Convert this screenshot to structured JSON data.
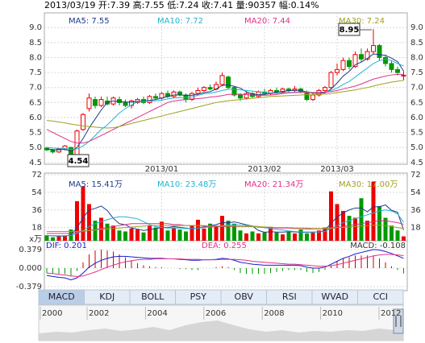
{
  "header": "2013/03/19 开:7.39 高:7.55 低:7.24 收:7.41 量:90357 幅:0.14%",
  "chart_data": [
    {
      "type": "candlestick",
      "categories": [
        null,
        null,
        null,
        null,
        null,
        null,
        null,
        null,
        null,
        null,
        null,
        null,
        null,
        null,
        null,
        null,
        null,
        null,
        null,
        "2013/01",
        null,
        null,
        null,
        null,
        null,
        null,
        null,
        null,
        null,
        null,
        null,
        null,
        null,
        null,
        null,
        null,
        "2013/02",
        null,
        null,
        null,
        null,
        null,
        null,
        null,
        null,
        null,
        null,
        null,
        "2013/03",
        null,
        null,
        null,
        null,
        null,
        null,
        null,
        null,
        null,
        null,
        null
      ],
      "open": [
        4.98,
        4.92,
        4.85,
        4.95,
        5.0,
        4.62,
        5.6,
        6.3,
        6.6,
        6.4,
        6.55,
        6.45,
        6.6,
        6.5,
        6.4,
        6.5,
        6.6,
        6.5,
        6.7,
        6.65,
        6.8,
        6.7,
        6.85,
        6.75,
        6.6,
        6.8,
        6.9,
        7.0,
        6.95,
        7.1,
        7.35,
        7.0,
        6.75,
        6.65,
        6.8,
        6.7,
        6.85,
        6.8,
        6.9,
        6.85,
        6.95,
        6.9,
        6.95,
        6.85,
        6.6,
        6.75,
        6.9,
        7.0,
        7.5,
        7.6,
        7.9,
        7.7,
        8.1,
        7.95,
        8.2,
        8.4,
        8.0,
        7.8,
        7.6,
        7.39
      ],
      "high": [
        5.02,
        4.95,
        4.98,
        5.08,
        5.02,
        5.6,
        6.15,
        6.8,
        6.7,
        6.7,
        6.7,
        6.7,
        6.7,
        6.6,
        6.6,
        6.65,
        6.7,
        6.75,
        6.8,
        6.85,
        6.9,
        6.9,
        6.9,
        6.8,
        6.85,
        7.0,
        7.05,
        7.1,
        7.2,
        7.5,
        7.4,
        7.05,
        6.8,
        6.85,
        6.85,
        6.9,
        6.95,
        6.95,
        7.0,
        7.0,
        7.0,
        7.05,
        7.0,
        6.9,
        6.8,
        6.95,
        7.05,
        7.55,
        7.8,
        8.0,
        8.0,
        8.2,
        8.3,
        8.3,
        8.95,
        8.45,
        8.1,
        7.9,
        7.7,
        7.55
      ],
      "low": [
        4.88,
        4.8,
        4.82,
        4.9,
        4.54,
        4.6,
        5.55,
        6.2,
        6.3,
        6.35,
        6.4,
        6.4,
        6.4,
        6.35,
        6.3,
        6.45,
        6.45,
        6.45,
        6.6,
        6.6,
        6.65,
        6.65,
        6.7,
        6.5,
        6.55,
        6.75,
        6.85,
        6.9,
        6.9,
        7.05,
        6.95,
        6.7,
        6.55,
        6.6,
        6.65,
        6.65,
        6.75,
        6.75,
        6.8,
        6.8,
        6.85,
        6.85,
        6.8,
        6.55,
        6.55,
        6.7,
        6.85,
        6.95,
        7.4,
        7.55,
        7.6,
        7.65,
        7.85,
        7.9,
        8.1,
        7.9,
        7.7,
        7.5,
        7.4,
        7.24
      ],
      "close": [
        4.92,
        4.85,
        4.95,
        5.05,
        4.62,
        5.55,
        6.1,
        6.65,
        6.4,
        6.6,
        6.45,
        6.65,
        6.5,
        6.4,
        6.55,
        6.6,
        6.5,
        6.7,
        6.65,
        6.8,
        6.7,
        6.85,
        6.75,
        6.6,
        6.8,
        6.9,
        7.0,
        6.95,
        7.1,
        7.4,
        7.0,
        6.75,
        6.65,
        6.8,
        6.7,
        6.85,
        6.8,
        6.9,
        6.85,
        6.95,
        6.9,
        6.95,
        6.85,
        6.6,
        6.75,
        6.9,
        7.0,
        7.5,
        7.6,
        7.9,
        7.7,
        8.1,
        7.95,
        8.2,
        8.4,
        8.0,
        7.8,
        7.6,
        7.5,
        7.41
      ],
      "up_color": "#ee0000",
      "down_color": "#009900",
      "ylim": [
        4.44,
        9.49
      ],
      "yticks": [
        {
          "value": 9,
          "label": "9.0"
        },
        8.5,
        {
          "value": 8,
          "label": "8.0"
        },
        7.5,
        {
          "value": 7,
          "label": "7.0"
        },
        6.5,
        {
          "value": 6,
          "label": "6.0"
        },
        5.5,
        {
          "value": 5,
          "label": "5.0"
        },
        4.5
      ],
      "annotations": [
        "8.95",
        "4.54"
      ],
      "series": [
        {
          "name": "MA5",
          "legend": "MA5: 7.55",
          "color": "#1c3c8c",
          "values": [
            4.95,
            4.93,
            4.92,
            4.94,
            4.87,
            5.0,
            5.3,
            5.65,
            5.95,
            6.25,
            6.5,
            6.55,
            6.53,
            6.52,
            6.51,
            6.54,
            6.55,
            6.57,
            6.6,
            6.65,
            6.7,
            6.75,
            6.75,
            6.74,
            6.74,
            6.78,
            6.83,
            6.86,
            6.95,
            7.07,
            7.09,
            7.04,
            6.98,
            6.86,
            6.78,
            6.76,
            6.77,
            6.81,
            6.84,
            6.87,
            6.89,
            6.91,
            6.9,
            6.85,
            6.81,
            6.81,
            6.82,
            6.95,
            7.15,
            7.38,
            7.54,
            7.76,
            7.85,
            7.97,
            8.12,
            8.1,
            8.07,
            7.98,
            7.86,
            7.55
          ]
        },
        {
          "name": "MA10",
          "legend": "MA10: 7.72",
          "color": "#22b4d0",
          "values": [
            5.0,
            4.98,
            4.97,
            4.96,
            4.94,
            4.95,
            5.05,
            5.2,
            5.4,
            5.6,
            5.75,
            5.95,
            6.15,
            6.3,
            6.42,
            6.52,
            6.54,
            6.55,
            6.56,
            6.58,
            6.62,
            6.65,
            6.66,
            6.67,
            6.69,
            6.74,
            6.79,
            6.81,
            6.85,
            6.9,
            6.94,
            6.94,
            6.92,
            6.9,
            6.88,
            6.86,
            6.84,
            6.82,
            6.8,
            6.82,
            6.83,
            6.84,
            6.85,
            6.85,
            6.83,
            6.83,
            6.85,
            6.9,
            6.98,
            7.1,
            7.2,
            7.35,
            7.5,
            7.65,
            7.8,
            7.9,
            7.95,
            7.9,
            7.8,
            7.72
          ]
        },
        {
          "name": "MA20",
          "legend": "MA20: 7.44",
          "color": "#e0308a",
          "values": [
            5.6,
            5.5,
            5.4,
            5.3,
            5.2,
            5.15,
            5.15,
            5.2,
            5.3,
            5.4,
            5.5,
            5.6,
            5.7,
            5.8,
            5.9,
            6.0,
            6.1,
            6.2,
            6.3,
            6.4,
            6.5,
            6.55,
            6.58,
            6.6,
            6.62,
            6.63,
            6.65,
            6.68,
            6.7,
            6.73,
            6.77,
            6.78,
            6.78,
            6.76,
            6.75,
            6.74,
            6.74,
            6.75,
            6.77,
            6.8,
            6.82,
            6.83,
            6.84,
            6.84,
            6.83,
            6.83,
            6.84,
            6.86,
            6.9,
            6.95,
            7.0,
            7.05,
            7.12,
            7.2,
            7.28,
            7.33,
            7.38,
            7.42,
            7.44,
            7.44
          ]
        },
        {
          "name": "MA30",
          "legend": "MA30: 7.24",
          "color": "#a0a020",
          "values": [
            5.9,
            5.88,
            5.85,
            5.82,
            5.78,
            5.75,
            5.72,
            5.7,
            5.68,
            5.66,
            5.65,
            5.66,
            5.7,
            5.75,
            5.8,
            5.85,
            5.9,
            5.95,
            6.0,
            6.05,
            6.1,
            6.15,
            6.2,
            6.25,
            6.3,
            6.35,
            6.4,
            6.45,
            6.5,
            6.53,
            6.56,
            6.58,
            6.6,
            6.62,
            6.64,
            6.66,
            6.68,
            6.7,
            6.71,
            6.72,
            6.73,
            6.74,
            6.75,
            6.76,
            6.76,
            6.77,
            6.78,
            6.8,
            6.83,
            6.86,
            6.89,
            6.92,
            6.96,
            7.0,
            7.05,
            7.1,
            7.14,
            7.18,
            7.21,
            7.24
          ]
        }
      ]
    },
    {
      "type": "bar",
      "unit": "x万",
      "values": [
        10,
        8,
        9,
        10,
        16,
        45,
        60,
        42,
        25,
        28,
        22,
        20,
        15,
        14,
        17,
        16,
        13,
        20,
        18,
        24,
        15,
        18,
        16,
        14,
        20,
        26,
        17,
        22,
        20,
        30,
        25,
        22,
        15,
        12,
        14,
        12,
        13,
        18,
        13,
        11,
        14,
        12,
        16,
        12,
        13,
        15,
        18,
        55,
        42,
        35,
        30,
        28,
        48,
        25,
        65,
        40,
        28,
        20,
        15,
        9
      ],
      "ylim": [
        4.5,
        73.7
      ],
      "yticks": [
        72,
        54,
        36,
        18
      ],
      "series": [
        {
          "name": "MA5",
          "legend": "MA5: 15.41万",
          "color": "#1c3c8c",
          "values": [
            10,
            9.5,
            9.3,
            9.2,
            10.6,
            17.6,
            28,
            36,
            37.6,
            40,
            35.4,
            27.4,
            22,
            20.8,
            17.6,
            16.4,
            15,
            16,
            16.8,
            18.2,
            18,
            19,
            18.2,
            17.4,
            16.6,
            17.8,
            18.6,
            19.8,
            21,
            23,
            22.8,
            23.8,
            22.4,
            20.8,
            19.6,
            15,
            13.2,
            13.8,
            13.4,
            13.4,
            13.8,
            13.6,
            13.2,
            13,
            13.4,
            13.6,
            14.8,
            22.6,
            28.6,
            33,
            36,
            38,
            38,
            34,
            39.2,
            39.2,
            41.2,
            35.6,
            33.6,
            15.41
          ]
        },
        {
          "name": "MA10",
          "legend": "MA10: 23.48万",
          "color": "#22b4d0",
          "values": [
            10,
            9.8,
            9.6,
            9.5,
            10,
            12,
            15,
            19,
            22,
            24,
            26,
            28,
            29,
            29,
            28,
            27,
            24,
            21,
            19,
            18,
            17.5,
            17.5,
            17.5,
            17,
            17,
            17.5,
            18,
            18.5,
            19,
            20,
            20.5,
            21,
            20.5,
            20,
            19.5,
            19,
            18,
            17,
            16,
            15.5,
            14.5,
            14,
            13.5,
            13.5,
            13.5,
            13.5,
            14,
            17,
            20,
            23,
            25,
            27,
            29,
            31,
            33,
            35,
            36,
            35,
            32,
            23.48
          ]
        },
        {
          "name": "MA20",
          "legend": "MA20: 21.34万",
          "color": "#e0308a",
          "values": [
            12,
            12,
            12,
            12,
            12,
            13,
            14,
            15,
            16,
            17,
            18,
            19,
            20,
            21,
            22,
            22,
            22,
            22,
            22,
            22,
            22,
            21,
            21,
            20,
            20,
            20,
            19.5,
            19,
            19,
            19,
            19,
            19,
            19,
            19,
            19,
            18.5,
            18,
            18,
            17.5,
            17.5,
            17.5,
            17,
            17,
            16.5,
            16.5,
            16.5,
            16.5,
            17,
            18,
            19,
            20,
            21,
            22,
            23,
            24,
            25,
            25,
            24,
            23,
            21.34
          ]
        },
        {
          "name": "MA30",
          "legend": "MA30: 17.00万",
          "color": "#a0a020",
          "values": [
            14,
            14,
            14,
            14,
            14,
            14,
            14.5,
            15,
            15.5,
            16,
            16.5,
            17,
            17.5,
            18,
            18.5,
            19,
            19.5,
            20,
            20,
            20,
            20,
            20,
            20,
            20,
            20,
            20,
            20,
            19.5,
            19.5,
            19.5,
            19.5,
            19.5,
            19,
            19,
            19,
            19,
            18.5,
            18.5,
            18,
            18,
            18,
            17.5,
            17.5,
            17.5,
            17,
            17,
            17,
            17.5,
            18,
            18,
            18.5,
            19,
            19.5,
            20,
            20.5,
            20.5,
            20,
            19,
            18,
            17.0
          ]
        }
      ]
    },
    {
      "type": "macd",
      "ylim": [
        -0.461,
        0.56
      ],
      "yticks": [
        0.379,
        {
          "value": 0,
          "label": "0.000"
        },
        -0.379
      ],
      "series": [
        {
          "name": "DIF",
          "legend": "DIF: 0.201",
          "color": "#1a1acc",
          "values": [
            -0.15,
            -0.17,
            -0.19,
            -0.2,
            -0.24,
            -0.2,
            -0.1,
            0.02,
            0.1,
            0.16,
            0.2,
            0.23,
            0.24,
            0.24,
            0.23,
            0.22,
            0.21,
            0.2,
            0.2,
            0.2,
            0.19,
            0.19,
            0.18,
            0.17,
            0.16,
            0.16,
            0.17,
            0.17,
            0.18,
            0.2,
            0.19,
            0.16,
            0.12,
            0.1,
            0.08,
            0.07,
            0.06,
            0.06,
            0.06,
            0.06,
            0.06,
            0.06,
            0.05,
            0.02,
            0.0,
            0.0,
            0.02,
            0.08,
            0.14,
            0.2,
            0.24,
            0.29,
            0.32,
            0.35,
            0.38,
            0.37,
            0.34,
            0.3,
            0.25,
            0.201
          ]
        },
        {
          "name": "DEA",
          "legend": "DEA: 0.255",
          "color": "#e0308a",
          "values": [
            -0.1,
            -0.11,
            -0.13,
            -0.14,
            -0.16,
            -0.17,
            -0.16,
            -0.12,
            -0.08,
            -0.03,
            0.02,
            0.06,
            0.1,
            0.13,
            0.15,
            0.17,
            0.18,
            0.18,
            0.19,
            0.19,
            0.19,
            0.19,
            0.19,
            0.18,
            0.18,
            0.18,
            0.17,
            0.17,
            0.17,
            0.18,
            0.18,
            0.18,
            0.17,
            0.16,
            0.14,
            0.13,
            0.12,
            0.11,
            0.1,
            0.09,
            0.08,
            0.08,
            0.07,
            0.06,
            0.05,
            0.04,
            0.04,
            0.05,
            0.07,
            0.1,
            0.13,
            0.16,
            0.19,
            0.22,
            0.25,
            0.27,
            0.28,
            0.28,
            0.27,
            0.255
          ]
        }
      ],
      "histogram": {
        "name": "MACD",
        "legend": "MACD: -0.108",
        "up_color": "#cc0000",
        "down_color": "#009900",
        "values": [
          -0.1,
          -0.12,
          -0.12,
          -0.12,
          -0.16,
          -0.06,
          0.12,
          0.28,
          0.36,
          0.38,
          0.36,
          0.34,
          0.28,
          0.22,
          0.16,
          0.1,
          0.06,
          0.04,
          0.02,
          0.02,
          0,
          0,
          -0.02,
          -0.02,
          -0.04,
          -0.04,
          0,
          0,
          0.02,
          0.04,
          0.02,
          -0.04,
          -0.1,
          -0.12,
          -0.12,
          -0.12,
          -0.12,
          -0.1,
          -0.08,
          -0.06,
          -0.04,
          -0.04,
          -0.04,
          -0.08,
          -0.1,
          -0.08,
          -0.04,
          0.06,
          0.14,
          0.2,
          0.22,
          0.26,
          0.26,
          0.26,
          0.26,
          0.2,
          0.12,
          0.04,
          -0.04,
          -0.108
        ]
      }
    }
  ],
  "tabs": [
    "MACD",
    "KDJ",
    "BOLL",
    "PSY",
    "OBV",
    "RSI",
    "WVAD",
    "CCI"
  ],
  "selected_tab": 0,
  "timeline": {
    "years": [
      2000,
      2002,
      2004,
      2006,
      2008,
      2010,
      2012
    ]
  }
}
